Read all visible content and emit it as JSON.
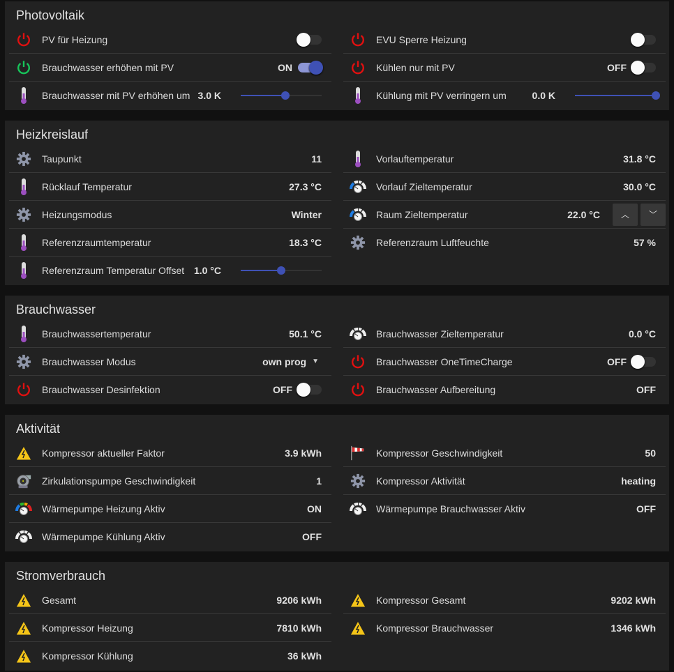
{
  "sections": [
    {
      "title": "Photovoltaik",
      "left": [
        {
          "type": "toggle",
          "icon": "power",
          "color": "#e01010",
          "label": "PV für Heizung",
          "on": false
        },
        {
          "type": "toggle",
          "icon": "power",
          "color": "#17c45a",
          "label": "Brauchwasser erhöhen mit PV",
          "value": "ON",
          "on": true
        },
        {
          "type": "slider",
          "icon": "thermometer",
          "label": "Brauchwasser mit PV erhöhen um",
          "value": "3.0 K",
          "fraction": 0.55
        }
      ],
      "right": [
        {
          "type": "toggle",
          "icon": "power",
          "color": "#e01010",
          "label": "EVU Sperre Heizung",
          "on": false
        },
        {
          "type": "toggle",
          "icon": "power",
          "color": "#e01010",
          "label": "Kühlen nur mit PV",
          "value": "OFF",
          "on": false
        },
        {
          "type": "slider",
          "icon": "thermometer",
          "label": "Kühlung mit PV verringern um",
          "value": "0.0 K",
          "fraction": 1.0
        }
      ]
    },
    {
      "title": "Heizkreislauf",
      "left": [
        {
          "type": "value",
          "icon": "gear",
          "label": "Taupunkt",
          "value": "11"
        },
        {
          "type": "value",
          "icon": "thermometer",
          "label": "Rücklauf Temperatur",
          "value": "27.3 °C"
        },
        {
          "type": "value",
          "icon": "gear",
          "label": "Heizungsmodus",
          "value": "Winter"
        },
        {
          "type": "value",
          "icon": "thermometer",
          "label": "Referenzraumtemperatur",
          "value": "18.3 °C"
        },
        {
          "type": "slider",
          "icon": "thermometer",
          "label": "Referenzraum Temperatur Offset",
          "value": "1.0 °C",
          "fraction": 0.5
        }
      ],
      "right": [
        {
          "type": "value",
          "icon": "thermometer",
          "label": "Vorlauftemperatur",
          "value": "31.8 °C"
        },
        {
          "type": "value",
          "icon": "gauge-blue",
          "label": "Vorlauf Zieltemperatur",
          "value": "30.0 °C"
        },
        {
          "type": "stepper",
          "icon": "gauge-blue",
          "label": "Raum Zieltemperatur",
          "value": "22.0 °C",
          "up": "chevron-up",
          "down": "chevron-down"
        },
        {
          "type": "value",
          "icon": "gear",
          "label": "Referenzraum Luftfeuchte",
          "value": "57 %"
        }
      ]
    },
    {
      "title": "Brauchwasser",
      "left": [
        {
          "type": "value",
          "icon": "thermometer",
          "label": "Brauchwassertemperatur",
          "value": "50.1 °C"
        },
        {
          "type": "select",
          "icon": "gear",
          "label": "Brauchwasser Modus",
          "value": "own prog"
        },
        {
          "type": "toggle",
          "icon": "power",
          "color": "#e01010",
          "label": "Brauchwasser Desinfektion",
          "value": "OFF",
          "on": false
        }
      ],
      "right": [
        {
          "type": "value",
          "icon": "gauge-white",
          "label": "Brauchwasser Zieltemperatur",
          "value": "0.0 °C"
        },
        {
          "type": "toggle",
          "icon": "power",
          "color": "#e01010",
          "label": "Brauchwasser OneTimeCharge",
          "value": "OFF",
          "on": false
        },
        {
          "type": "value",
          "icon": "power",
          "color": "#e01010",
          "label": "Brauchwasser Aufbereitung",
          "value": "OFF"
        }
      ]
    },
    {
      "title": "Aktivität",
      "left": [
        {
          "type": "value",
          "icon": "warning",
          "label": "Kompressor aktueller Faktor",
          "value": "3.9 kWh"
        },
        {
          "type": "value",
          "icon": "pump",
          "label": "Zirkulationspumpe Geschwindigkeit",
          "value": "1"
        },
        {
          "type": "value",
          "icon": "gauge-color",
          "label": "Wärmepumpe Heizung Aktiv",
          "value": "ON"
        },
        {
          "type": "value",
          "icon": "gauge-white",
          "label": "Wärmepumpe Kühlung Aktiv",
          "value": "OFF"
        }
      ],
      "right": [
        {
          "type": "value",
          "icon": "windsock",
          "label": "Kompressor Geschwindigkeit",
          "value": "50"
        },
        {
          "type": "value",
          "icon": "gear",
          "label": "Kompressor Aktivität",
          "value": "heating"
        },
        {
          "type": "value",
          "icon": "gauge-white",
          "label": "Wärmepumpe Brauchwasser Aktiv",
          "value": "OFF"
        }
      ]
    },
    {
      "title": "Stromverbrauch",
      "left": [
        {
          "type": "value",
          "icon": "warning",
          "label": "Gesamt",
          "value": "9206 kWh"
        },
        {
          "type": "value",
          "icon": "warning",
          "label": "Kompressor Heizung",
          "value": "7810 kWh"
        },
        {
          "type": "value",
          "icon": "warning",
          "label": "Kompressor Kühlung",
          "value": "36 kWh"
        }
      ],
      "right": [
        {
          "type": "value",
          "icon": "warning",
          "label": "Kompressor Gesamt",
          "value": "9202 kWh"
        },
        {
          "type": "value",
          "icon": "warning",
          "label": "Kompressor Brauchwasser",
          "value": "1346 kWh"
        }
      ]
    }
  ]
}
